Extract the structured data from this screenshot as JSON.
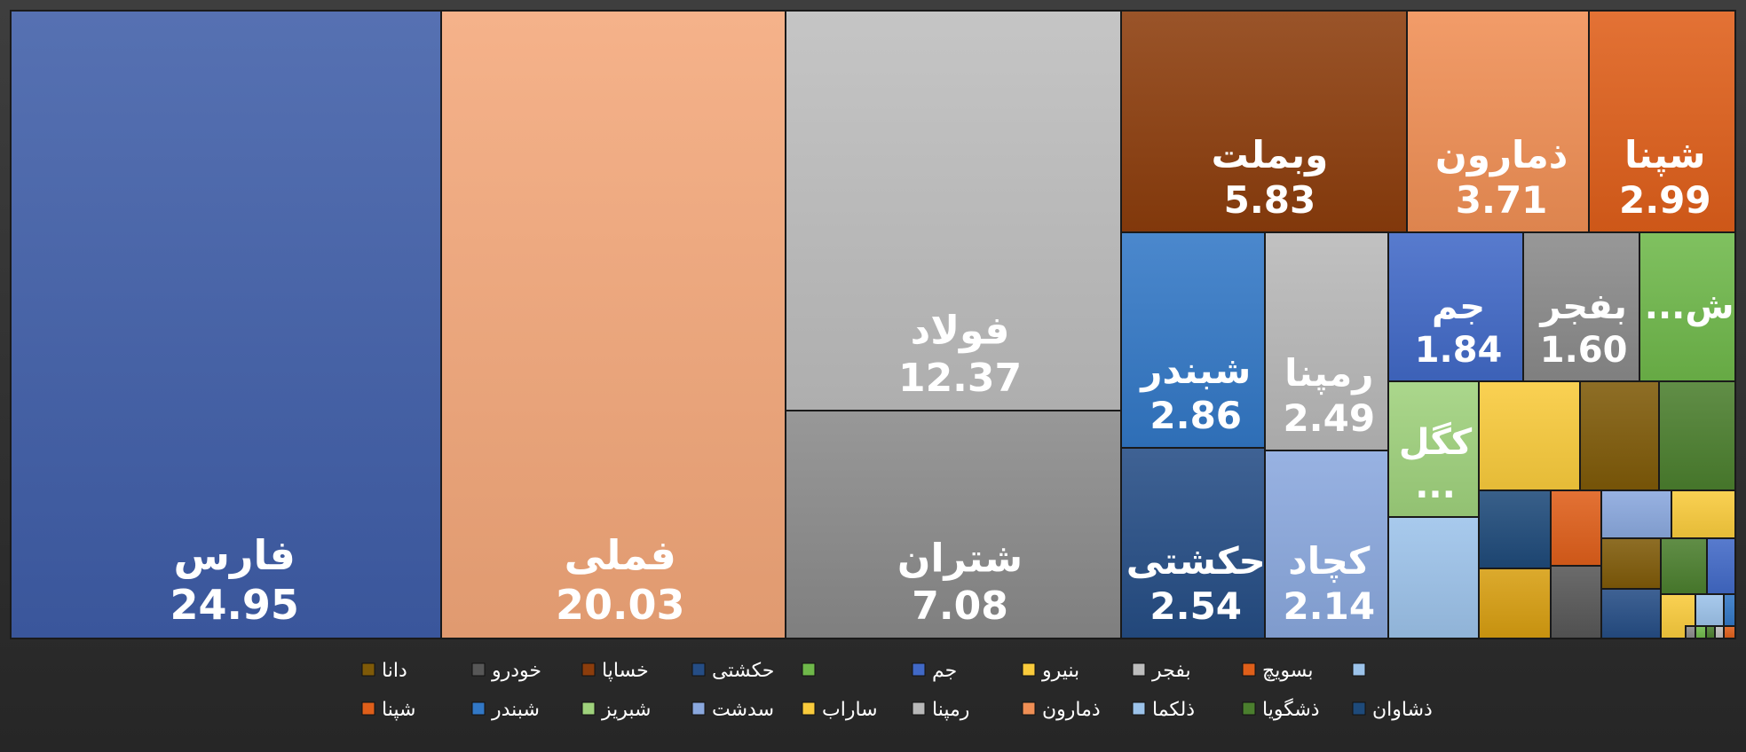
{
  "colors": {
    "blue": "#3f5ea8",
    "peach": "#f4a77a",
    "silver": "#bdbdbd",
    "gray": "#8a8a8a",
    "brown": "#8c3d0c",
    "orange": "#f08f55",
    "darkorange": "#df5f1a",
    "midblue": "#3278c6",
    "lightgray": "#b8b8b8",
    "royal": "#4169c7",
    "green": "#6fb84a",
    "paleblue": "#8aa8de",
    "navy": "#254d85",
    "lightgreen": "#9fd27c",
    "skyblue": "#9cc3ea",
    "yellow": "#f9cb3c",
    "olive": "#7f5a08",
    "darkgreen": "#4b7f2e",
    "dkblue": "#1e4a7a",
    "gold": "#d79e10",
    "dkgray": "#575757"
  },
  "chart_data": {
    "type": "treemap",
    "title": "",
    "unit": "",
    "tiles": [
      {
        "label": "فارس",
        "value": 24.95,
        "display": "24.95",
        "color": "blue"
      },
      {
        "label": "فملی",
        "value": 20.03,
        "display": "20.03",
        "color": "peach"
      },
      {
        "label": "فولاد",
        "value": 12.37,
        "display": "12.37",
        "color": "silver"
      },
      {
        "label": "شتران",
        "value": 7.08,
        "display": "7.08",
        "color": "gray"
      },
      {
        "label": "وبملت",
        "value": 5.83,
        "display": "5.83",
        "color": "brown"
      },
      {
        "label": "ذمارون",
        "value": 3.71,
        "display": "3.71",
        "color": "orange"
      },
      {
        "label": "شپنا",
        "value": 2.99,
        "display": "2.99",
        "color": "darkorange"
      },
      {
        "label": "شبندر",
        "value": 2.86,
        "display": "2.86",
        "color": "midblue"
      },
      {
        "label": "رمپنا",
        "value": 2.49,
        "display": "2.49",
        "color": "lightgray"
      },
      {
        "label": "حکشتی",
        "value": 2.54,
        "display": "2.54",
        "color": "navy"
      },
      {
        "label": "کچاد",
        "value": 2.14,
        "display": "2.14",
        "color": "paleblue"
      },
      {
        "label": "جم",
        "value": 1.84,
        "display": "1.84",
        "color": "royal"
      },
      {
        "label": "بفجر",
        "value": 1.6,
        "display": "1.60",
        "color": "gray"
      },
      {
        "label": "ش...",
        "value": null,
        "display": "",
        "color": "green"
      },
      {
        "label": "کگل",
        "value": null,
        "display": "...",
        "color": "lightgreen"
      },
      {
        "label": "",
        "value": null,
        "display": "",
        "color": "skyblue"
      },
      {
        "label": "",
        "value": null,
        "display": "",
        "color": "yellow"
      },
      {
        "label": "",
        "value": null,
        "display": "",
        "color": "olive"
      },
      {
        "label": "",
        "value": null,
        "display": "",
        "color": "darkgreen"
      },
      {
        "label": "",
        "value": null,
        "display": "",
        "color": "dkblue"
      },
      {
        "label": "",
        "value": null,
        "display": "",
        "color": "darkorange"
      },
      {
        "label": "",
        "value": null,
        "display": "",
        "color": "paleblue"
      },
      {
        "label": "",
        "value": null,
        "display": "",
        "color": "yellow"
      },
      {
        "label": "",
        "value": null,
        "display": "",
        "color": "gold"
      },
      {
        "label": "",
        "value": null,
        "display": "",
        "color": "dkgray"
      },
      {
        "label": "",
        "value": null,
        "display": "",
        "color": "olive"
      },
      {
        "label": "",
        "value": null,
        "display": "",
        "color": "darkgreen"
      },
      {
        "label": "",
        "value": null,
        "display": "",
        "color": "royal"
      },
      {
        "label": "",
        "value": null,
        "display": "",
        "color": "navy"
      },
      {
        "label": "",
        "value": null,
        "display": "",
        "color": "yellow"
      },
      {
        "label": "",
        "value": null,
        "display": "",
        "color": "skyblue"
      },
      {
        "label": "",
        "value": null,
        "display": "",
        "color": "midblue"
      },
      {
        "label": "",
        "value": null,
        "display": "",
        "color": "darkorange"
      },
      {
        "label": "",
        "value": null,
        "display": "",
        "color": "green"
      },
      {
        "label": "",
        "value": null,
        "display": "",
        "color": "darkgreen"
      },
      {
        "label": "",
        "value": null,
        "display": "",
        "color": "silver"
      },
      {
        "label": "",
        "value": null,
        "display": "",
        "color": "gray"
      }
    ],
    "legend": {
      "placement": "bottom",
      "rows": [
        [
          {
            "label": "",
            "color": "skyblue"
          },
          {
            "label": "بسویچ",
            "color": "darkorange"
          },
          {
            "label": "بفجر",
            "color": "silver"
          },
          {
            "label": "بنیرو",
            "color": "yellow"
          },
          {
            "label": "جم",
            "color": "royal"
          },
          {
            "label": "",
            "color": "green"
          },
          {
            "label": "حکشتی",
            "color": "navy"
          },
          {
            "label": "خساپا",
            "color": "brown"
          },
          {
            "label": "خودرو",
            "color": "dkgray"
          },
          {
            "label": "دانا",
            "color": "olive"
          }
        ],
        [
          {
            "label": "ذشاوان",
            "color": "dkblue"
          },
          {
            "label": "ذشگویا",
            "color": "darkgreen"
          },
          {
            "label": "ذلکما",
            "color": "skyblue"
          },
          {
            "label": "ذمارون",
            "color": "orange"
          },
          {
            "label": "رمپنا",
            "color": "lightgray"
          },
          {
            "label": "ساراب",
            "color": "yellow"
          },
          {
            "label": "سدشت",
            "color": "paleblue"
          },
          {
            "label": "شبریز",
            "color": "lightgreen"
          },
          {
            "label": "شبندر",
            "color": "midblue"
          },
          {
            "label": "شپنا",
            "color": "darkorange"
          }
        ]
      ]
    }
  }
}
